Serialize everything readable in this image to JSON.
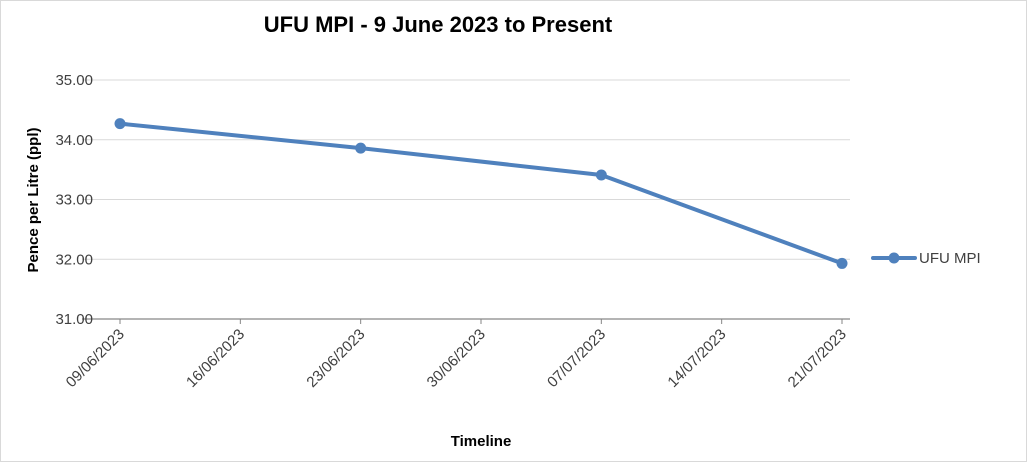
{
  "chart_data": {
    "type": "line",
    "title": "UFU MPI -  9 June 2023 to Present",
    "xlabel": "Timeline",
    "ylabel": "Pence per Litre (ppl)",
    "ylim": [
      31.0,
      35.0
    ],
    "y_ticks": [
      "31.00",
      "32.00",
      "33.00",
      "34.00",
      "35.00"
    ],
    "x_ticks": [
      "09/06/2023",
      "16/06/2023",
      "23/06/2023",
      "30/06/2023",
      "07/07/2023",
      "14/07/2023",
      "21/07/2023"
    ],
    "grid": true,
    "legend_position": "right",
    "series": [
      {
        "name": "UFU MPI",
        "color": "#4f81bd",
        "points": [
          {
            "x": "09/06/2023",
            "y": 34.27
          },
          {
            "x": "23/06/2023",
            "y": 33.86
          },
          {
            "x": "07/07/2023",
            "y": 33.41
          },
          {
            "x": "21/07/2023",
            "y": 31.93
          }
        ]
      }
    ]
  }
}
